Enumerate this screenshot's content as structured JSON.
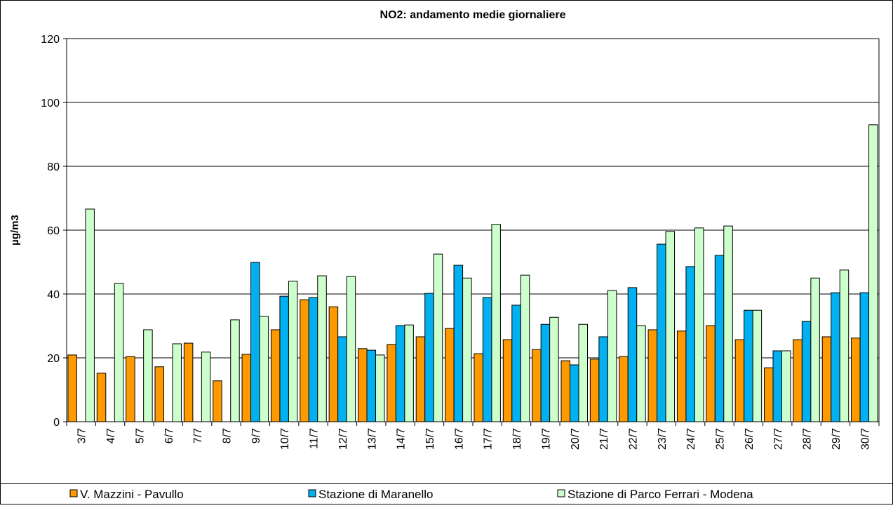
{
  "chart_data": {
    "type": "bar",
    "title": "NO2: andamento medie  giornaliere",
    "y_label": "µg/m3",
    "categories": [
      "3/7",
      "4/7",
      "5/7",
      "6/7",
      "7/7",
      "8/7",
      "9/7",
      "10/7",
      "11/7",
      "12/7",
      "13/7",
      "14/7",
      "15/7",
      "16/7",
      "17/7",
      "18/7",
      "19/7",
      "20/7",
      "21/7",
      "22/7",
      "23/7",
      "24/7",
      "25/7",
      "26/7",
      "27/7",
      "28/7",
      "29/7",
      "30/7"
    ],
    "series": [
      {
        "name": "V. Mazzini - Pavullo",
        "color": "#ff9900",
        "values": [
          20.9,
          15.2,
          20.4,
          17.2,
          24.6,
          12.8,
          21.1,
          28.8,
          38.2,
          36.0,
          22.9,
          24.2,
          26.6,
          29.2,
          21.3,
          25.7,
          22.6,
          19.1,
          19.6,
          20.4,
          28.8,
          28.4,
          30.1,
          25.7,
          16.9,
          25.7,
          26.6,
          26.2
        ]
      },
      {
        "name": "Stazione di Maranello",
        "color": "#00b0f0",
        "values": [
          null,
          null,
          null,
          null,
          null,
          null,
          49.9,
          39.3,
          38.9,
          26.6,
          22.4,
          30.1,
          40.2,
          49.0,
          38.9,
          36.5,
          30.5,
          17.8,
          26.6,
          42.0,
          55.6,
          48.6,
          52.1,
          34.9,
          22.2,
          31.4,
          40.4,
          40.4
        ]
      },
      {
        "name": "Stazione di Parco Ferrari - Modena",
        "color": "#ccffcc",
        "values": [
          66.6,
          43.3,
          28.8,
          24.4,
          21.8,
          31.9,
          33.0,
          44.0,
          45.7,
          45.5,
          20.9,
          30.3,
          52.5,
          45.0,
          61.8,
          45.9,
          32.7,
          30.5,
          41.1,
          30.1,
          59.6,
          60.7,
          61.3,
          34.9,
          22.2,
          45.0,
          47.5,
          93.0
        ]
      }
    ],
    "ylim": [
      0,
      120
    ],
    "yticks": [
      0,
      20,
      40,
      60,
      80,
      100,
      120
    ],
    "grid": true,
    "legend": "bottom"
  }
}
